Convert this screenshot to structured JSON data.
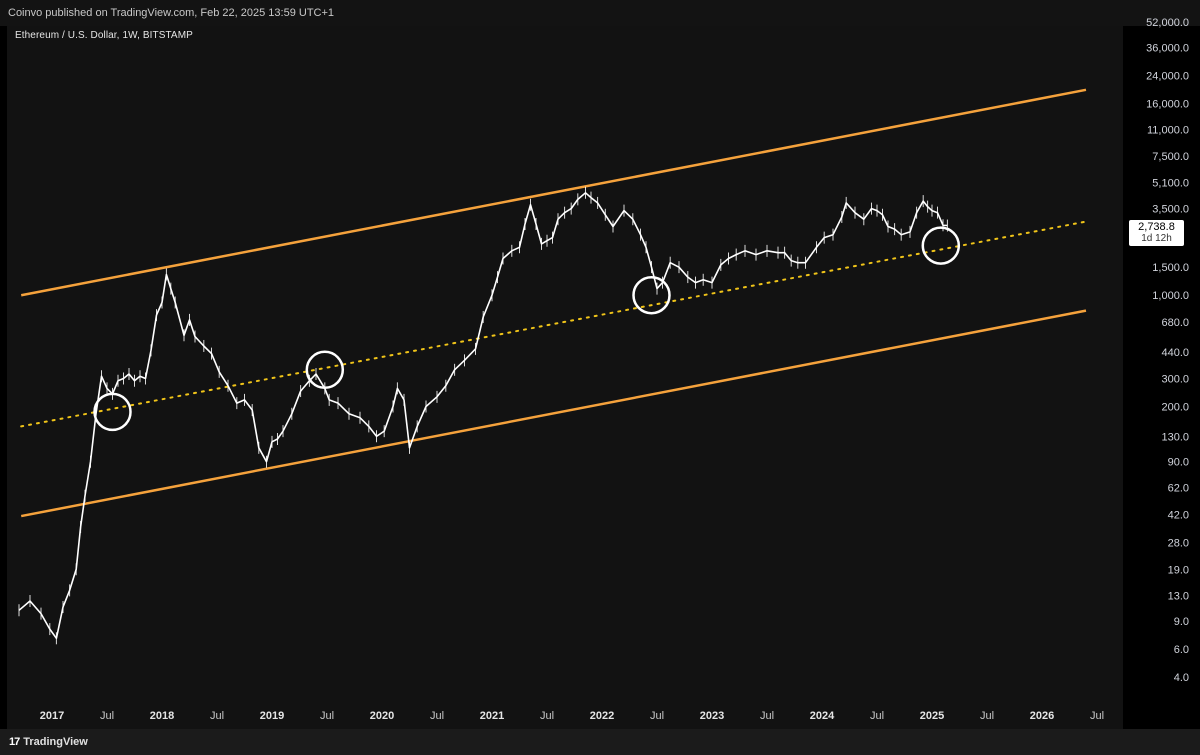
{
  "header": {
    "publisher_text": "Coinvo published on TradingView.com, Feb 22, 2025 13:59 UTC+1"
  },
  "footer": {
    "brand": "TradingView",
    "logo_icon": "tradingview-logo-icon"
  },
  "chart_data": {
    "type": "line",
    "title": "Ethereum / U.S. Dollar, 1W, BITSTAMP",
    "symbol": "Ethereum / U.S. Dollar",
    "interval": "1W",
    "exchange": "BITSTAMP",
    "y_scale": "log",
    "ylim": [
      3.3,
      64000
    ],
    "xlim": [
      2016.7,
      2026.5
    ],
    "grid": false,
    "y_ticks": [
      "52,000.0",
      "36,000.0",
      "24,000.0",
      "16,000.0",
      "11,000.0",
      "7,500.0",
      "5,100.0",
      "3,500.0",
      "1,500.0",
      "1,000.0",
      "680.0",
      "440.0",
      "300.0",
      "200.0",
      "130.0",
      "90.0",
      "62.0",
      "42.0",
      "28.0",
      "19.0",
      "13.0",
      "9.0",
      "6.0",
      "4.0"
    ],
    "y_tick_values": [
      52000,
      36000,
      24000,
      16000,
      11000,
      7500,
      5100,
      3500,
      1500,
      1000,
      680,
      440,
      300,
      200,
      130,
      90,
      62,
      42,
      28,
      19,
      13,
      9,
      6,
      4
    ],
    "x_ticks": [
      {
        "label": "2017",
        "value": 2017.0,
        "bold": true
      },
      {
        "label": "Jul",
        "value": 2017.5,
        "bold": false
      },
      {
        "label": "2018",
        "value": 2018.0,
        "bold": true
      },
      {
        "label": "Jul",
        "value": 2018.5,
        "bold": false
      },
      {
        "label": "2019",
        "value": 2019.0,
        "bold": true
      },
      {
        "label": "Jul",
        "value": 2019.5,
        "bold": false
      },
      {
        "label": "2020",
        "value": 2020.0,
        "bold": true
      },
      {
        "label": "Jul",
        "value": 2020.5,
        "bold": false
      },
      {
        "label": "2021",
        "value": 2021.0,
        "bold": true
      },
      {
        "label": "Jul",
        "value": 2021.5,
        "bold": false
      },
      {
        "label": "2022",
        "value": 2022.0,
        "bold": true
      },
      {
        "label": "Jul",
        "value": 2022.5,
        "bold": false
      },
      {
        "label": "2023",
        "value": 2023.0,
        "bold": true
      },
      {
        "label": "Jul",
        "value": 2023.5,
        "bold": false
      },
      {
        "label": "2024",
        "value": 2024.0,
        "bold": true
      },
      {
        "label": "Jul",
        "value": 2024.5,
        "bold": false
      },
      {
        "label": "2025",
        "value": 2025.0,
        "bold": true
      },
      {
        "label": "Jul",
        "value": 2025.5,
        "bold": false
      },
      {
        "label": "2026",
        "value": 2026.0,
        "bold": true
      },
      {
        "label": "Jul",
        "value": 2026.5,
        "bold": false
      }
    ],
    "last_price": "2,738.8",
    "countdown": "1d 12h",
    "series": [
      {
        "color": "#ffffff",
        "x": [
          2016.7,
          2016.8,
          2016.9,
          2016.98,
          2017.04,
          2017.1,
          2017.16,
          2017.22,
          2017.26,
          2017.3,
          2017.35,
          2017.4,
          2017.45,
          2017.5,
          2017.55,
          2017.6,
          2017.65,
          2017.7,
          2017.75,
          2017.8,
          2017.85,
          2017.9,
          2017.95,
          2018.0,
          2018.04,
          2018.08,
          2018.12,
          2018.2,
          2018.25,
          2018.3,
          2018.38,
          2018.45,
          2018.52,
          2018.6,
          2018.68,
          2018.75,
          2018.82,
          2018.88,
          2018.95,
          2019.0,
          2019.05,
          2019.1,
          2019.18,
          2019.26,
          2019.34,
          2019.4,
          2019.48,
          2019.52,
          2019.6,
          2019.7,
          2019.8,
          2019.88,
          2019.95,
          2020.02,
          2020.1,
          2020.14,
          2020.2,
          2020.25,
          2020.32,
          2020.4,
          2020.5,
          2020.58,
          2020.66,
          2020.75,
          2020.85,
          2020.92,
          2021.0,
          2021.05,
          2021.1,
          2021.18,
          2021.25,
          2021.3,
          2021.35,
          2021.4,
          2021.45,
          2021.5,
          2021.55,
          2021.6,
          2021.66,
          2021.72,
          2021.78,
          2021.85,
          2021.9,
          2021.96,
          2022.03,
          2022.1,
          2022.2,
          2022.28,
          2022.35,
          2022.4,
          2022.45,
          2022.5,
          2022.55,
          2022.62,
          2022.7,
          2022.78,
          2022.85,
          2022.92,
          2023.0,
          2023.08,
          2023.15,
          2023.22,
          2023.3,
          2023.4,
          2023.5,
          2023.6,
          2023.66,
          2023.72,
          2023.78,
          2023.85,
          2023.95,
          2024.02,
          2024.1,
          2024.18,
          2024.22,
          2024.3,
          2024.38,
          2024.45,
          2024.5,
          2024.55,
          2024.6,
          2024.66,
          2024.72,
          2024.8,
          2024.86,
          2024.92,
          2024.96,
          2025.0,
          2025.05,
          2025.1,
          2025.14
        ],
        "y": [
          10.5,
          12,
          10,
          8,
          7,
          11,
          14,
          19,
          35,
          55,
          90,
          180,
          310,
          260,
          240,
          290,
          300,
          320,
          290,
          310,
          300,
          450,
          750,
          900,
          1350,
          1100,
          900,
          560,
          700,
          550,
          480,
          430,
          330,
          270,
          210,
          220,
          190,
          110,
          90,
          120,
          125,
          140,
          180,
          250,
          290,
          320,
          260,
          220,
          210,
          180,
          170,
          150,
          130,
          140,
          200,
          260,
          220,
          110,
          150,
          200,
          230,
          270,
          340,
          390,
          460,
          730,
          1000,
          1300,
          1700,
          1900,
          2000,
          2800,
          3700,
          2800,
          2100,
          2200,
          2300,
          3000,
          3300,
          3500,
          4000,
          4400,
          4100,
          3800,
          3200,
          2700,
          3400,
          3000,
          2400,
          2000,
          1500,
          1100,
          1200,
          1600,
          1500,
          1300,
          1200,
          1250,
          1200,
          1550,
          1700,
          1800,
          1900,
          1800,
          1900,
          1850,
          1850,
          1650,
          1600,
          1600,
          2000,
          2300,
          2400,
          3100,
          3800,
          3300,
          3000,
          3500,
          3400,
          3200,
          2700,
          2600,
          2400,
          2500,
          3300,
          3900,
          3600,
          3400,
          3300,
          2750,
          2738.8
        ]
      }
    ],
    "annotations": [
      {
        "type": "trendline",
        "color": "#f5a23c",
        "style": "solid",
        "from": {
          "x": 2016.72,
          "y": 1000
        },
        "to": {
          "x": 2026.4,
          "y": 19500
        }
      },
      {
        "type": "trendline",
        "color": "#f5a23c",
        "style": "solid",
        "from": {
          "x": 2016.72,
          "y": 41
        },
        "to": {
          "x": 2026.4,
          "y": 800
        }
      },
      {
        "type": "trendline",
        "color": "#f0c419",
        "style": "dotted",
        "from": {
          "x": 2016.72,
          "y": 150
        },
        "to": {
          "x": 2026.4,
          "y": 2900
        }
      },
      {
        "type": "circle",
        "color": "#ffffff",
        "x": 2017.55,
        "y": 185
      },
      {
        "type": "circle",
        "color": "#ffffff",
        "x": 2019.48,
        "y": 340
      },
      {
        "type": "circle",
        "color": "#ffffff",
        "x": 2022.45,
        "y": 1000
      },
      {
        "type": "circle",
        "color": "#ffffff",
        "x": 2025.08,
        "y": 2050
      }
    ]
  }
}
